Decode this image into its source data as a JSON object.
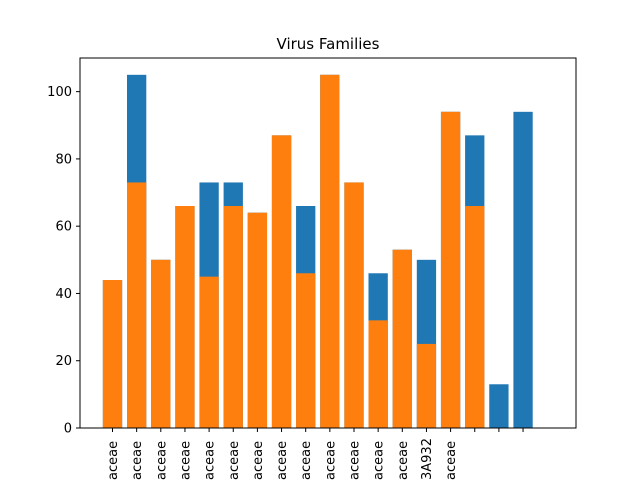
{
  "chart_data": {
    "type": "bar",
    "title": "Virus Families",
    "xlabel": "",
    "ylabel": "",
    "ylim": [
      0,
      110
    ],
    "yticks": [
      0,
      20,
      40,
      60,
      80,
      100
    ],
    "grid": false,
    "legend": "none",
    "categories": [
      "aceae",
      "aceae",
      "aceae",
      "aceae",
      "aceae",
      "aceae",
      "aceae",
      "aceae",
      "aceae",
      "aceae",
      "aceae",
      "aceae",
      "aceae",
      "3A932",
      "aceae",
      "",
      "",
      ""
    ],
    "series": [
      {
        "color": "#1f77b4",
        "values": [
          44,
          105,
          50,
          66,
          73,
          73,
          64,
          87,
          66,
          105,
          73,
          46,
          53,
          50,
          94,
          87,
          13,
          94
        ]
      },
      {
        "color": "#ff7f0e",
        "values": [
          44,
          73,
          50,
          66,
          45,
          66,
          64,
          87,
          46,
          105,
          73,
          32,
          53,
          25,
          94,
          66,
          null,
          null
        ]
      }
    ]
  }
}
